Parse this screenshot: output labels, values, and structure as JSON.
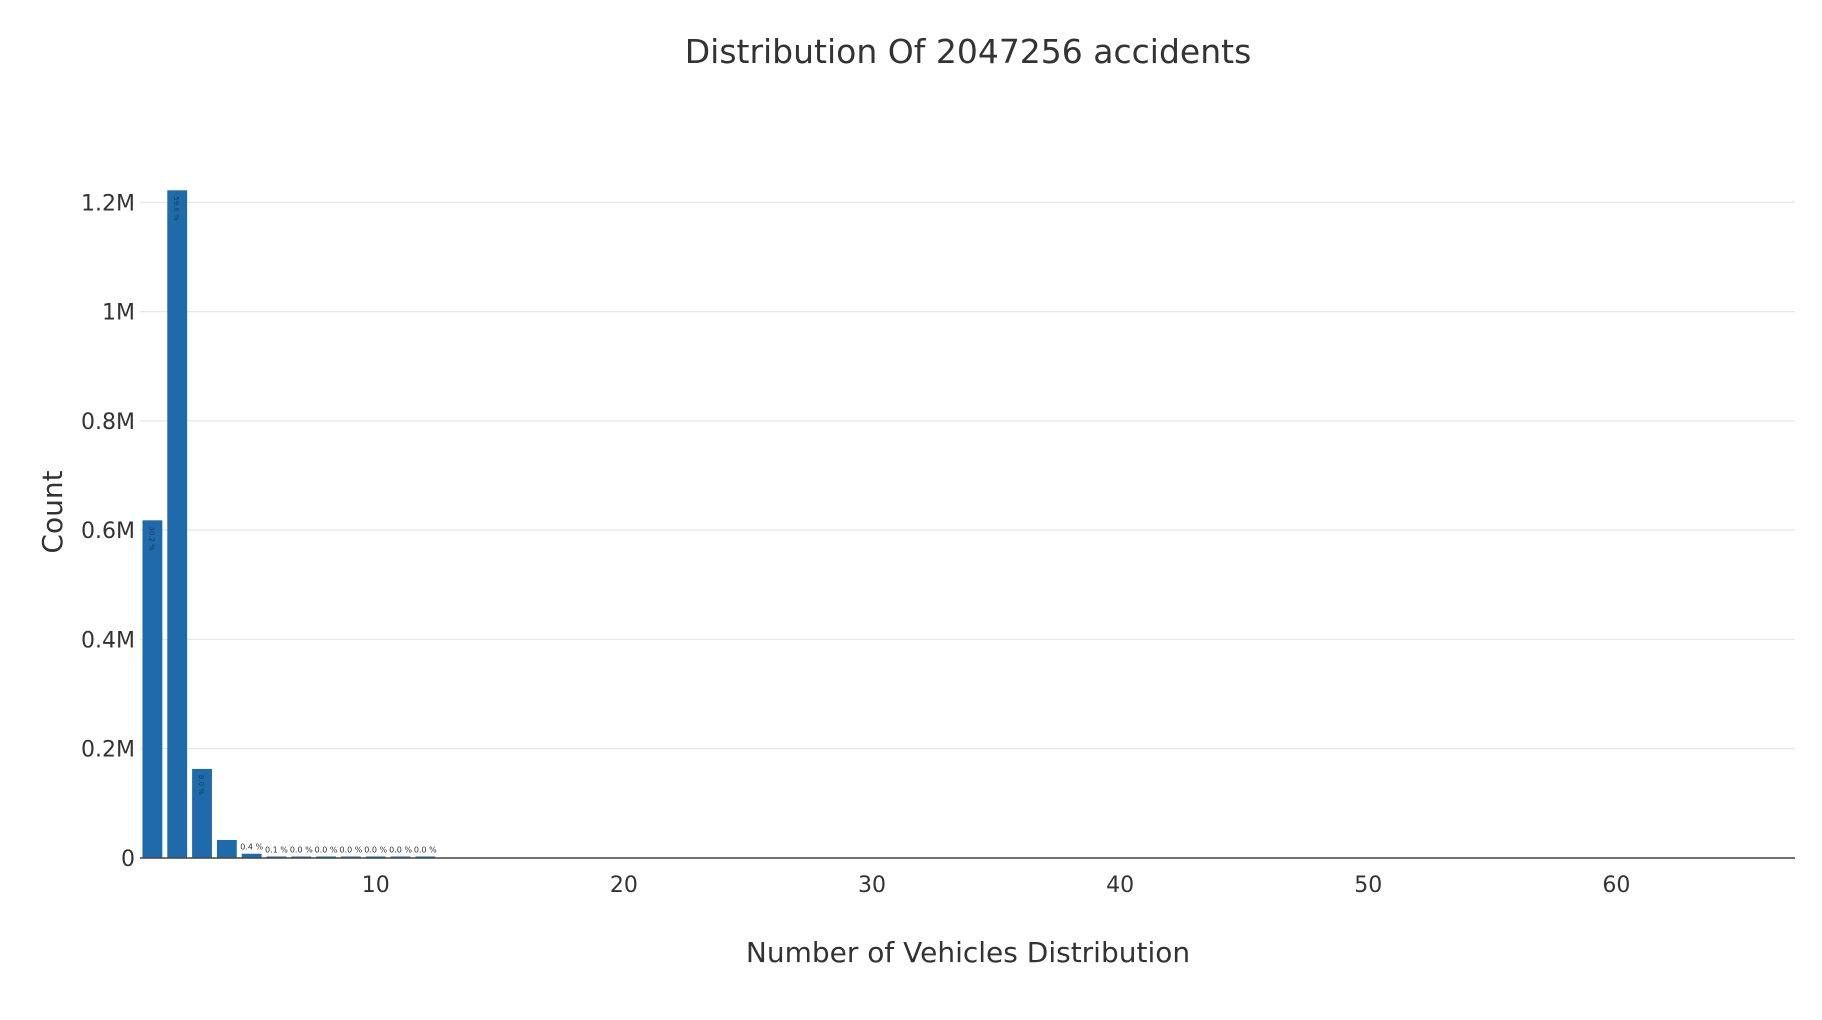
{
  "chart_data": {
    "type": "bar",
    "title": "Distribution Of 2047256 accidents",
    "xlabel": "Number of Vehicles Distribution",
    "ylabel": "Count",
    "x": [
      1,
      2,
      3,
      4,
      5,
      6,
      7,
      8,
      9,
      10,
      11,
      12
    ],
    "values": [
      618000,
      1222000,
      163000,
      33000,
      7800,
      2200,
      900,
      500,
      300,
      200,
      150,
      100
    ],
    "bar_labels": [
      "30.2 %",
      "59.6 %",
      "8.0 %",
      "",
      "0.4 %",
      "0.1 %",
      "0.0 %",
      "0.0 %",
      "0.0 %",
      "0.0 %",
      "0.0 %",
      "0.0 %"
    ],
    "xlim": [
      0.5,
      67.2
    ],
    "ylim": [
      0,
      1250000
    ],
    "xticks": [
      10,
      20,
      30,
      40,
      50,
      60
    ],
    "xtick_labels": [
      "10",
      "20",
      "30",
      "40",
      "50",
      "60"
    ],
    "yticks": [
      0,
      200000,
      400000,
      600000,
      800000,
      1000000,
      1200000
    ],
    "ytick_labels": [
      "0",
      "0.2M",
      "0.4M",
      "0.6M",
      "0.8M",
      "1M",
      "1.2M"
    ],
    "bar_color": "#1f6aab",
    "grid": true,
    "legend": "none"
  }
}
